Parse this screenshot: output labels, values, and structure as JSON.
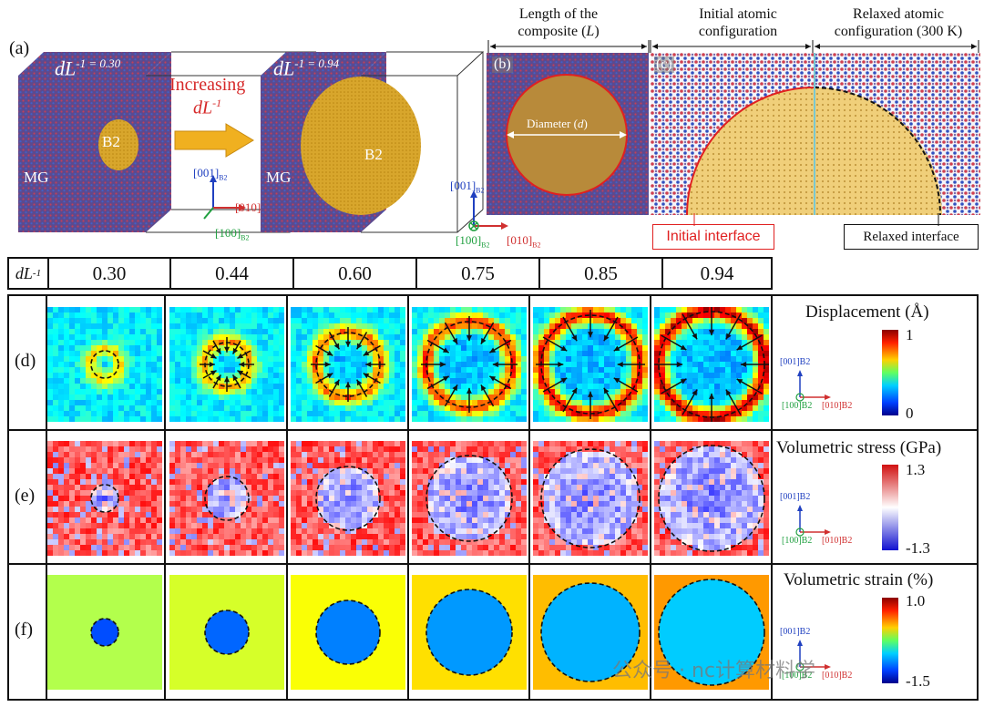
{
  "panel_a": {
    "label": "(a)",
    "left_ratio": "dL",
    "left_value": "-1 = 0.30",
    "right_value": "-1 = 0.94",
    "arrow_text_1": "Increasing",
    "arrow_text_2": "dL",
    "arrow_text_2_sup": "-1",
    "phase_small": "B2",
    "phase_large": "B2",
    "matrix_left": "MG",
    "matrix_right": "MG",
    "axis_001": "[001]",
    "axis_010": "[010]",
    "axis_100": "[100]",
    "axis_sub": "B2"
  },
  "panel_b": {
    "label": "(b)",
    "header": "Length of the composite (L)",
    "header_line1": "Length of the",
    "header_line2": "composite (",
    "header_L": "L",
    "header_close": ")",
    "diameter": "Diameter (",
    "diameter_d": "d",
    "diameter_close": ")"
  },
  "panel_c": {
    "label": "(c)",
    "initial_line1": "Initial atomic",
    "initial_line2": "configuration",
    "relaxed_line1": "Relaxed atomic",
    "relaxed_line2": "configuration (300 K)",
    "initial_interface": "Initial interface",
    "relaxed_interface": "Relaxed interface"
  },
  "ratio_row": {
    "header": "dL",
    "header_sup": "-1",
    "values": [
      "0.30",
      "0.44",
      "0.60",
      "0.75",
      "0.85",
      "0.94"
    ]
  },
  "rows": {
    "d": {
      "label": "(d)",
      "title": "Displacement (Å)",
      "max": "1",
      "min": "0"
    },
    "e": {
      "label": "(e)",
      "title": "Volumetric stress (GPa)",
      "max": "1.3",
      "min": "-1.3"
    },
    "f": {
      "label": "(f)",
      "title": "Volumetric strain (%)",
      "max": "1.0",
      "min": "-1.5"
    }
  },
  "watermark": "公众号 · nc计算材料学",
  "colors": {
    "mg_purple": "#6a4a8c",
    "b2_gold": "#d4a530",
    "interface_red": "#e02020"
  }
}
